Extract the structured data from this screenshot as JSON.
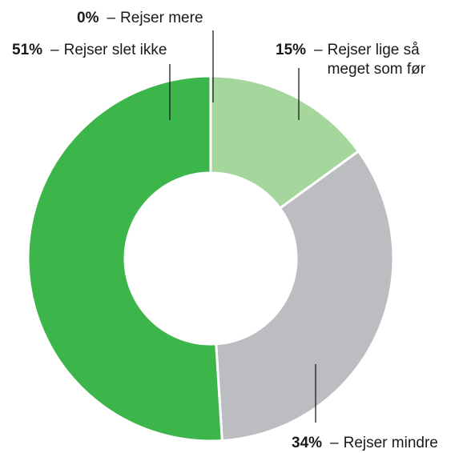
{
  "chart_data": {
    "type": "donut",
    "title": "",
    "colors": {
      "Rejser lige så meget som før": "#a5d69c",
      "Rejser mindre": "#bcbdc1",
      "Rejser slet ikke": "#3cb54a",
      "Rejser mere": "#2f9e3f"
    },
    "slices": [
      {
        "label": "Rejser mere",
        "value": 0,
        "display": "0%"
      },
      {
        "label": "Rejser lige så meget som før",
        "value": 15,
        "display": "15%"
      },
      {
        "label": "Rejser mindre",
        "value": 34,
        "display": "34%"
      },
      {
        "label": "Rejser slet ikke",
        "value": 51,
        "display": "51%"
      }
    ],
    "annotation_lines": {
      "Rejser lige så\nmeget som før": "Rejser lige så\nmeget som før"
    },
    "start_angle": "12 o'clock",
    "direction": "clockwise",
    "separator": "–"
  }
}
